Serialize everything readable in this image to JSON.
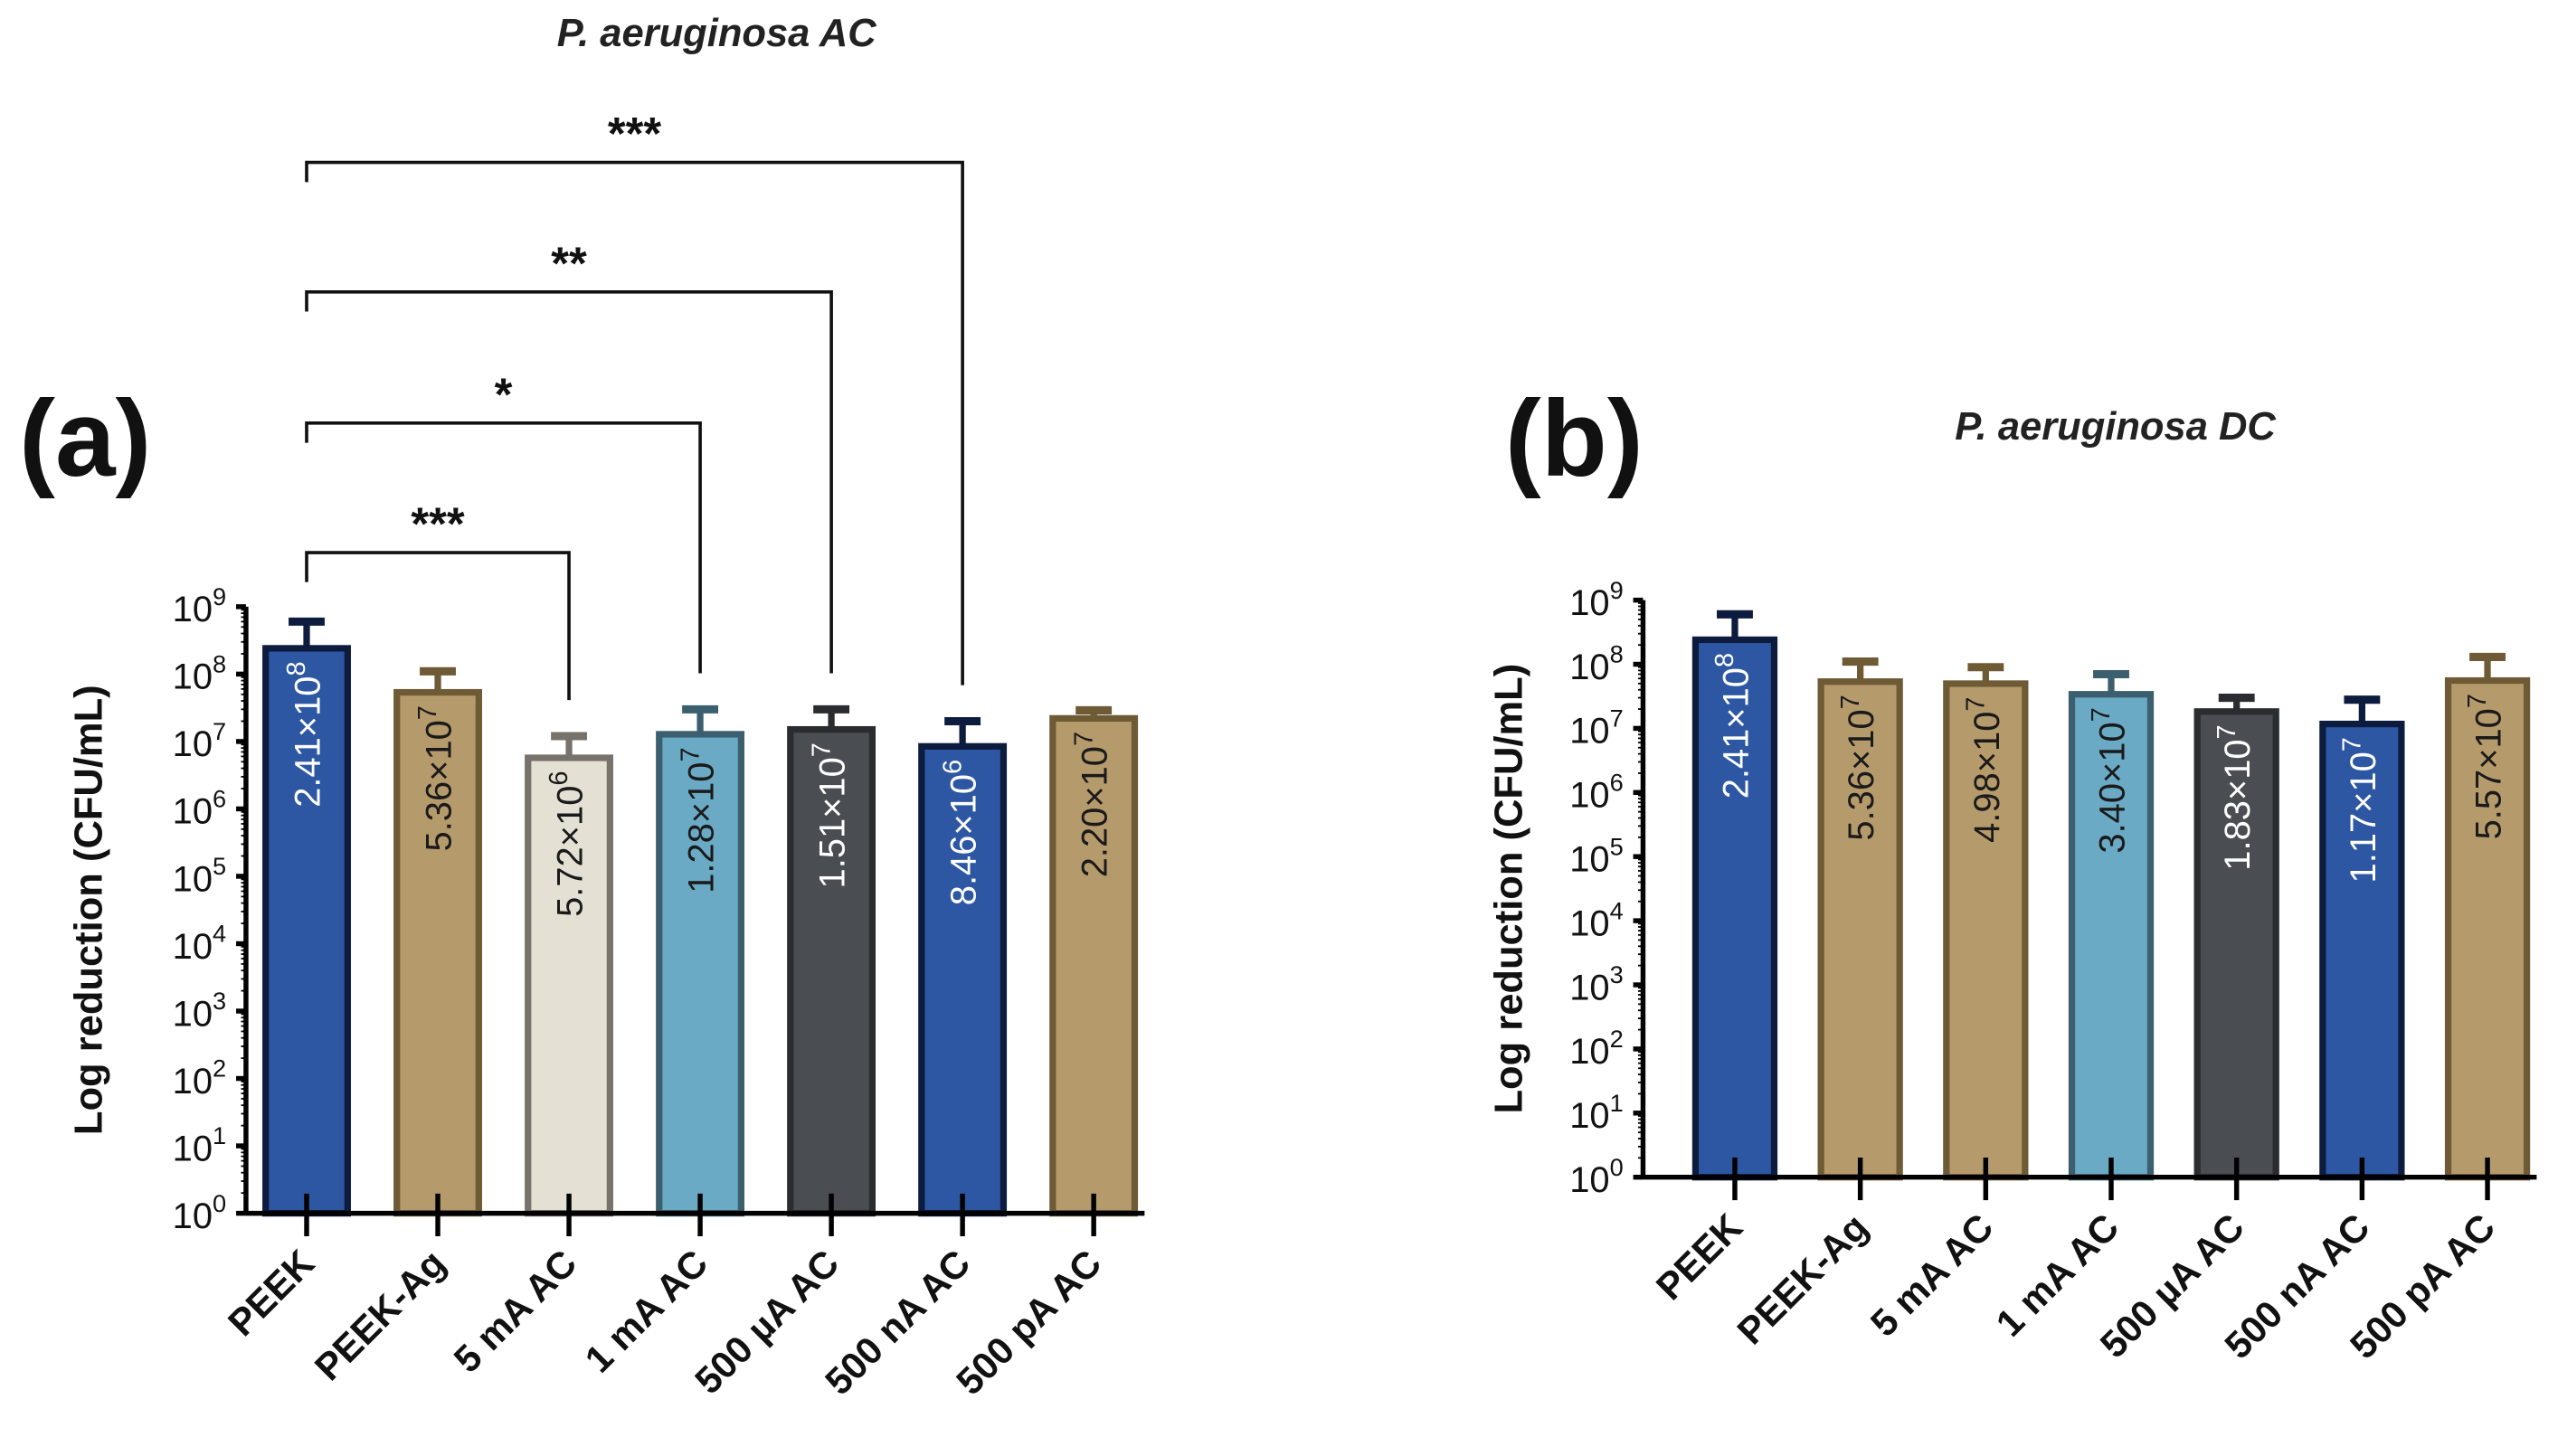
{
  "chart_data": [
    {
      "type": "bar",
      "panel_label": "(a)",
      "title": "P. aeruginosa AC",
      "ylabel": "Log reduction (CFU/mL)",
      "xlabel": "",
      "yscale": "log",
      "ylim": [
        1,
        1000000000
      ],
      "ytick_exponents": [
        0,
        1,
        2,
        3,
        4,
        5,
        6,
        7,
        8,
        9
      ],
      "categories": [
        "PEEK",
        "PEEK-Ag",
        "5 mA AC",
        "1 mA AC",
        "500 µA AC",
        "500 nA AC",
        "500 pA AC"
      ],
      "values": [
        241000000,
        53600000,
        5720000,
        12800000,
        15100000,
        8460000,
        22000000
      ],
      "error_upper": [
        600000000,
        110000000,
        12000000,
        30000000,
        30000000,
        20000000,
        29000000
      ],
      "value_labels": [
        {
          "mantissa": "2.41×10",
          "exp": "8"
        },
        {
          "mantissa": "5.36×10",
          "exp": "7"
        },
        {
          "mantissa": "5.72×10",
          "exp": "6"
        },
        {
          "mantissa": "1.28×10",
          "exp": "7"
        },
        {
          "mantissa": "1.51×10",
          "exp": "7"
        },
        {
          "mantissa": "8.46×10",
          "exp": "6"
        },
        {
          "mantissa": "2.20×10",
          "exp": "7"
        }
      ],
      "bar_colors": [
        "#2d57a3",
        "#b59a6c",
        "#e4e0d4",
        "#6aaac4",
        "#4a4d52",
        "#2d57a3",
        "#b59a6c"
      ],
      "edge_colors": [
        "#0d1b3e",
        "#6e5a35",
        "#77736c",
        "#3b5f6e",
        "#2a2c30",
        "#0d1b3e",
        "#6e5a35"
      ],
      "label_colors": [
        "#ffffff",
        "#1a1a1a",
        "#1a1a1a",
        "#1a1a1a",
        "#ffffff",
        "#ffffff",
        "#1a1a1a"
      ],
      "significance": [
        {
          "from": 0,
          "to": 2,
          "label": "***"
        },
        {
          "from": 0,
          "to": 3,
          "label": "*"
        },
        {
          "from": 0,
          "to": 4,
          "label": "**"
        },
        {
          "from": 0,
          "to": 5,
          "label": "***"
        }
      ]
    },
    {
      "type": "bar",
      "panel_label": "(b)",
      "title": "P. aeruginosa DC",
      "ylabel": "Log reduction (CFU/mL)",
      "xlabel": "",
      "yscale": "log",
      "ylim": [
        1,
        1000000000
      ],
      "ytick_exponents": [
        0,
        1,
        2,
        3,
        4,
        5,
        6,
        7,
        8,
        9
      ],
      "categories": [
        "PEEK",
        "PEEK-Ag",
        "5 mA AC",
        "1 mA AC",
        "500 µA AC",
        "500 nA AC",
        "500 pA AC"
      ],
      "values": [
        241000000,
        53600000,
        49800000,
        34000000,
        18300000,
        11700000,
        55700000
      ],
      "error_upper": [
        600000000,
        110000000,
        90000000,
        70000000,
        30000000,
        28000000,
        130000000
      ],
      "value_labels": [
        {
          "mantissa": "2.41×10",
          "exp": "8"
        },
        {
          "mantissa": "5.36×10",
          "exp": "7"
        },
        {
          "mantissa": "4.98×10",
          "exp": "7"
        },
        {
          "mantissa": "3.40×10",
          "exp": "7"
        },
        {
          "mantissa": "1.83×10",
          "exp": "7"
        },
        {
          "mantissa": "1.17×10",
          "exp": "7"
        },
        {
          "mantissa": "5.57×10",
          "exp": "7"
        }
      ],
      "bar_colors": [
        "#2d57a3",
        "#b59a6c",
        "#b59a6c",
        "#6aaac4",
        "#4a4d52",
        "#2d57a3",
        "#b59a6c"
      ],
      "edge_colors": [
        "#0d1b3e",
        "#6e5a35",
        "#6e5a35",
        "#3b5f6e",
        "#2a2c30",
        "#0d1b3e",
        "#6e5a35"
      ],
      "label_colors": [
        "#ffffff",
        "#1a1a1a",
        "#1a1a1a",
        "#1a1a1a",
        "#ffffff",
        "#ffffff",
        "#1a1a1a"
      ],
      "significance": []
    }
  ]
}
